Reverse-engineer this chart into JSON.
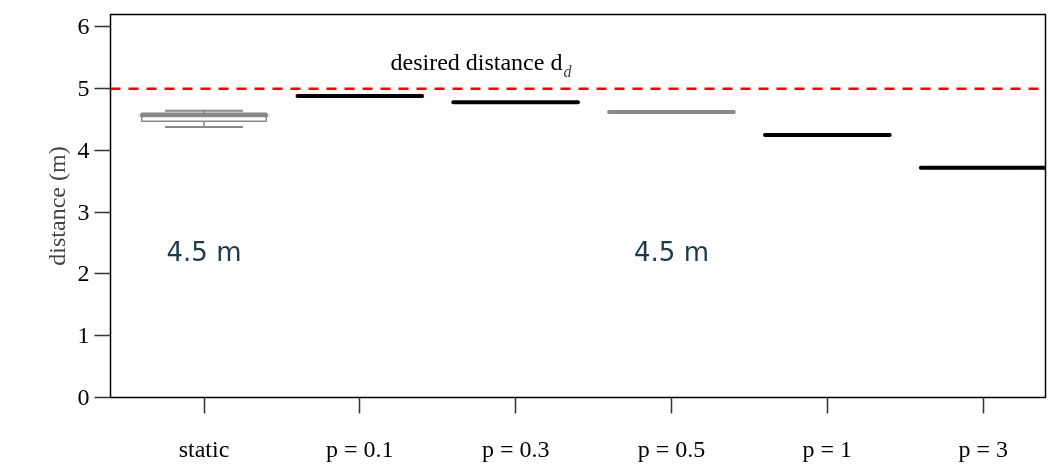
{
  "chart_data": {
    "type": "box",
    "ylabel": "distance (m)",
    "categories": [
      "static",
      "p = 0.1",
      "p = 0.3",
      "p = 0.5",
      "p = 1",
      "p = 3"
    ],
    "boxes": [
      {
        "low": 4.38,
        "q1": 4.47,
        "median": 4.57,
        "q3": 4.6,
        "high": 4.64
      },
      {
        "low": 4.88,
        "q1": 4.88,
        "median": 4.88,
        "q3": 4.88,
        "high": 4.88
      },
      {
        "low": 4.78,
        "q1": 4.78,
        "median": 4.78,
        "q3": 4.78,
        "high": 4.78
      },
      {
        "low": 4.62,
        "q1": 4.62,
        "median": 4.62,
        "q3": 4.62,
        "high": 4.62
      },
      {
        "low": 4.25,
        "q1": 4.25,
        "median": 4.25,
        "q3": 4.25,
        "high": 4.25
      },
      {
        "low": 3.72,
        "q1": 3.72,
        "median": 3.72,
        "q3": 3.72,
        "high": 3.72
      }
    ],
    "colors": [
      "#888888",
      "#000000",
      "#000000",
      "#888888",
      "#000000",
      "#000000"
    ],
    "ylim": [
      0,
      6.2
    ],
    "yticks": [
      0,
      1,
      2,
      3,
      4,
      5,
      6
    ],
    "grid": false,
    "ref_lines": [
      {
        "axis": "y",
        "value": 5,
        "label": "desired distance d$_{d}$",
        "color": "#ff0000",
        "line_style": "dashed"
      }
    ],
    "annotations": [
      "4.5 m",
      "4.5 m"
    ]
  }
}
